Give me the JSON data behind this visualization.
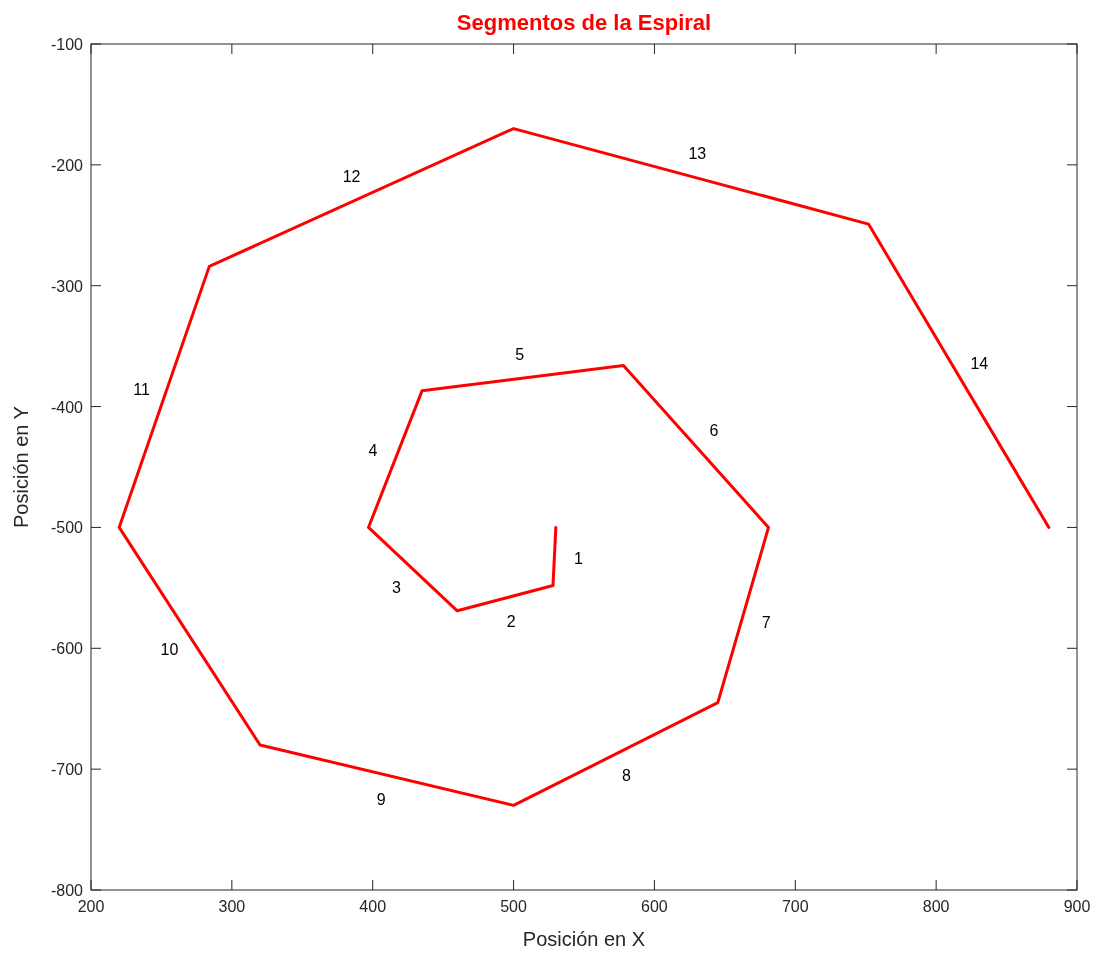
{
  "chart_data": {
    "type": "line",
    "title": "Segmentos de la Espiral",
    "xlabel": "Posición en X",
    "ylabel": "Posición en Y",
    "x": [
      530,
      528,
      460,
      397,
      435,
      578,
      681,
      645,
      500,
      320,
      220,
      284,
      500,
      752,
      880
    ],
    "series": [
      {
        "color": "#ff0000",
        "values": [
          -500,
          -548,
          -569,
          -500,
          -387,
          -366,
          -500,
          -645,
          -730,
          -680,
          -500,
          -284,
          -170,
          -249,
          -500
        ]
      }
    ],
    "xlim": [
      200,
      900
    ],
    "xticks": [
      200,
      300,
      400,
      500,
      600,
      700,
      800,
      900
    ],
    "ylim": [
      -800,
      -100
    ],
    "yticks": [
      -800,
      -700,
      -600,
      -500,
      -400,
      -300,
      -200,
      -100
    ],
    "marker": "none",
    "line_style": "solid",
    "annotations": [
      "1",
      "2",
      "3",
      "4",
      "5",
      "6",
      "7",
      "8",
      "9",
      "10",
      "11",
      "12",
      "13",
      "14"
    ]
  }
}
